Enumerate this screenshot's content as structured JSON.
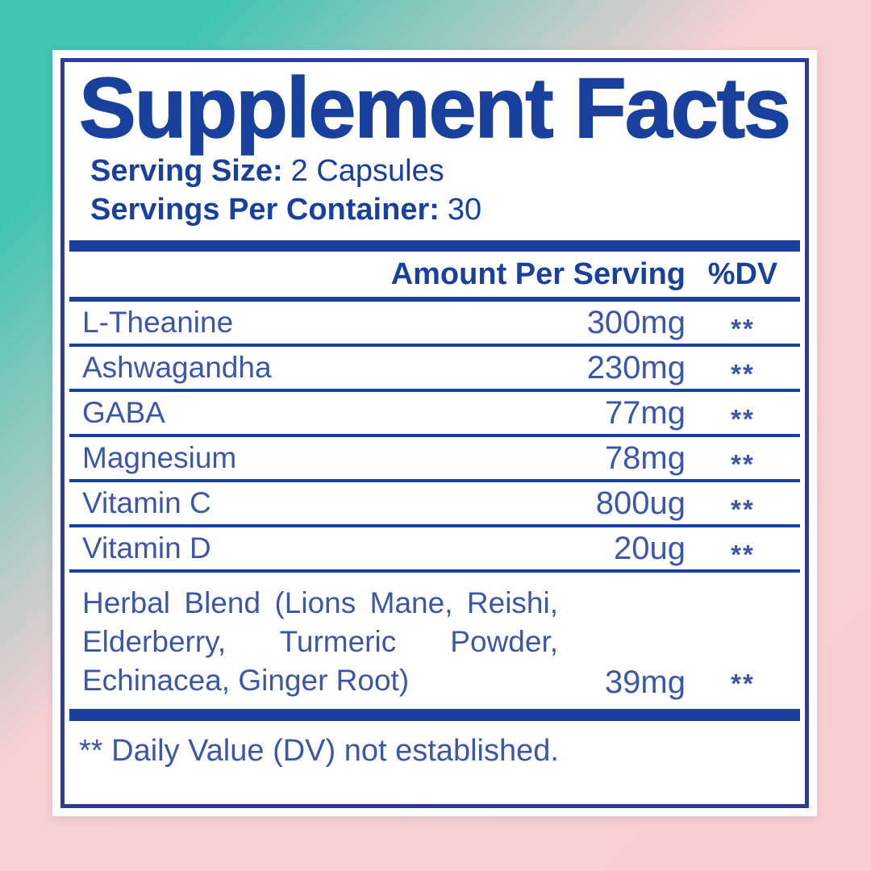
{
  "colors": {
    "teal": "#41c4b1",
    "pink": "#f7d0d2",
    "pink2": "#f9ced1",
    "navy": "#18409c",
    "border": "#2e3d92",
    "rowblue": "#3d57a8"
  },
  "title": "Supplement Facts",
  "serving": [
    {
      "label": "Serving Size:",
      "value": "2 Capsules"
    },
    {
      "label": "Servings Per Container:",
      "value": "30"
    }
  ],
  "table": {
    "header": {
      "amount": "Amount Per Serving",
      "dv": "%DV"
    },
    "rows": [
      {
        "name": "L-Theanine",
        "amount": "300mg",
        "dv": "**"
      },
      {
        "name": "Ashwagandha",
        "amount": "230mg",
        "dv": "**"
      },
      {
        "name": "GABA",
        "amount": "77mg",
        "dv": "**"
      },
      {
        "name": "Magnesium",
        "amount": "78mg",
        "dv": "**"
      },
      {
        "name": "Vitamin C",
        "amount": "800ug",
        "dv": "**"
      },
      {
        "name": "Vitamin D",
        "amount": "20ug",
        "dv": "**"
      },
      {
        "name": "Herbal Blend (Lions Mane, Reishi, Elderberry, Turmeric Powder, Echinacea, Ginger Root)",
        "amount": "39mg",
        "dv": "**"
      }
    ],
    "footnote": "** Daily Value (DV) not established."
  }
}
